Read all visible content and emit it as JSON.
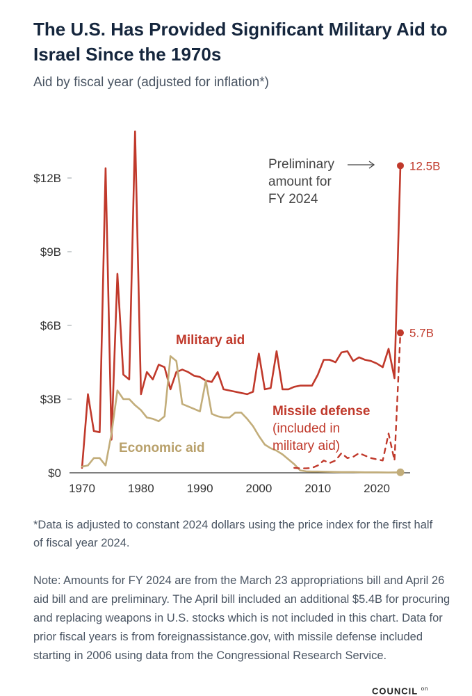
{
  "header": {
    "title": "The U.S. Has Provided Significant Military Aid to Israel Since the 1970s",
    "subtitle": "Aid by fiscal year (adjusted for inflation*)"
  },
  "colors": {
    "military": "#c0392b",
    "economic": "#c2ad7a",
    "axis": "#333333",
    "tick": "#9aa0a6"
  },
  "chart_data": {
    "type": "line",
    "title": "The U.S. Has Provided Significant Military Aid to Israel Since the 1970s",
    "subtitle": "Aid by fiscal year (adjusted for inflation*)",
    "xlabel": "",
    "ylabel": "",
    "xlim": [
      1968,
      2026
    ],
    "ylim": [
      0,
      15
    ],
    "grid": false,
    "y_ticks": [
      {
        "value": 0,
        "label": "$0"
      },
      {
        "value": 3,
        "label": "$3B"
      },
      {
        "value": 6,
        "label": "$6B"
      },
      {
        "value": 9,
        "label": "$9B"
      },
      {
        "value": 12,
        "label": "$12B"
      }
    ],
    "x_ticks": [
      {
        "value": 1970,
        "label": "1970"
      },
      {
        "value": 1980,
        "label": "1980"
      },
      {
        "value": 1990,
        "label": "1990"
      },
      {
        "value": 2000,
        "label": "2000"
      },
      {
        "value": 2010,
        "label": "2010"
      },
      {
        "value": 2020,
        "label": "2020"
      }
    ],
    "series": [
      {
        "name": "Military aid",
        "style": "solid",
        "points": [
          [
            1970,
            0.2
          ],
          [
            1971,
            3.2
          ],
          [
            1972,
            1.7
          ],
          [
            1973,
            1.65
          ],
          [
            1974,
            12.4
          ],
          [
            1975,
            1.35
          ],
          [
            1976,
            8.1
          ],
          [
            1977,
            4.0
          ],
          [
            1978,
            3.8
          ],
          [
            1979,
            13.9
          ],
          [
            1980,
            3.2
          ],
          [
            1981,
            4.1
          ],
          [
            1982,
            3.8
          ],
          [
            1983,
            4.4
          ],
          [
            1984,
            4.3
          ],
          [
            1985,
            3.4
          ],
          [
            1986,
            4.1
          ],
          [
            1987,
            4.2
          ],
          [
            1988,
            4.1
          ],
          [
            1989,
            3.95
          ],
          [
            1990,
            3.9
          ],
          [
            1991,
            3.75
          ],
          [
            1992,
            3.7
          ],
          [
            1993,
            4.1
          ],
          [
            1994,
            3.4
          ],
          [
            1995,
            3.35
          ],
          [
            1996,
            3.3
          ],
          [
            1997,
            3.25
          ],
          [
            1998,
            3.2
          ],
          [
            1999,
            3.3
          ],
          [
            2000,
            4.85
          ],
          [
            2001,
            3.4
          ],
          [
            2002,
            3.45
          ],
          [
            2003,
            4.95
          ],
          [
            2004,
            3.4
          ],
          [
            2005,
            3.4
          ],
          [
            2006,
            3.5
          ],
          [
            2007,
            3.55
          ],
          [
            2008,
            3.55
          ],
          [
            2009,
            3.55
          ],
          [
            2010,
            4.0
          ],
          [
            2011,
            4.6
          ],
          [
            2012,
            4.6
          ],
          [
            2013,
            4.5
          ],
          [
            2014,
            4.9
          ],
          [
            2015,
            4.95
          ],
          [
            2016,
            4.55
          ],
          [
            2017,
            4.7
          ],
          [
            2018,
            4.6
          ],
          [
            2019,
            4.55
          ],
          [
            2020,
            4.45
          ],
          [
            2021,
            4.3
          ],
          [
            2022,
            5.05
          ],
          [
            2023,
            3.85
          ],
          [
            2024,
            12.5
          ]
        ]
      },
      {
        "name": "Economic aid",
        "style": "solid",
        "points": [
          [
            1970,
            0.25
          ],
          [
            1971,
            0.3
          ],
          [
            1972,
            0.6
          ],
          [
            1973,
            0.6
          ],
          [
            1974,
            0.3
          ],
          [
            1975,
            1.6
          ],
          [
            1976,
            3.35
          ],
          [
            1977,
            3.0
          ],
          [
            1978,
            3.0
          ],
          [
            1979,
            2.75
          ],
          [
            1980,
            2.55
          ],
          [
            1981,
            2.25
          ],
          [
            1982,
            2.2
          ],
          [
            1983,
            2.1
          ],
          [
            1984,
            2.3
          ],
          [
            1985,
            4.75
          ],
          [
            1986,
            4.55
          ],
          [
            1987,
            2.8
          ],
          [
            1988,
            2.7
          ],
          [
            1989,
            2.6
          ],
          [
            1990,
            2.5
          ],
          [
            1991,
            3.75
          ],
          [
            1992,
            2.4
          ],
          [
            1993,
            2.3
          ],
          [
            1994,
            2.25
          ],
          [
            1995,
            2.25
          ],
          [
            1996,
            2.45
          ],
          [
            1997,
            2.45
          ],
          [
            1998,
            2.2
          ],
          [
            1999,
            1.9
          ],
          [
            2000,
            1.5
          ],
          [
            2001,
            1.15
          ],
          [
            2002,
            1.0
          ],
          [
            2003,
            0.9
          ],
          [
            2004,
            0.75
          ],
          [
            2005,
            0.55
          ],
          [
            2006,
            0.35
          ],
          [
            2007,
            0.1
          ],
          [
            2008,
            0.06
          ],
          [
            2009,
            0.05
          ],
          [
            2010,
            0.05
          ],
          [
            2012,
            0.04
          ],
          [
            2014,
            0.03
          ],
          [
            2016,
            0.03
          ],
          [
            2018,
            0.02
          ],
          [
            2020,
            0.02
          ],
          [
            2022,
            0.01
          ],
          [
            2024,
            0.02
          ]
        ]
      },
      {
        "name": "Missile defense (included in military aid)",
        "style": "dashed",
        "points": [
          [
            2006,
            0.2
          ],
          [
            2007,
            0.18
          ],
          [
            2008,
            0.18
          ],
          [
            2009,
            0.2
          ],
          [
            2010,
            0.3
          ],
          [
            2011,
            0.5
          ],
          [
            2012,
            0.4
          ],
          [
            2013,
            0.5
          ],
          [
            2014,
            0.8
          ],
          [
            2015,
            0.6
          ],
          [
            2016,
            0.65
          ],
          [
            2017,
            0.8
          ],
          [
            2018,
            0.7
          ],
          [
            2019,
            0.6
          ],
          [
            2020,
            0.55
          ],
          [
            2021,
            0.5
          ],
          [
            2022,
            1.6
          ],
          [
            2023,
            0.5
          ],
          [
            2024,
            5.7
          ]
        ]
      }
    ],
    "annotations": {
      "military_label": "Military aid",
      "economic_label": "Economic aid",
      "missile_label_1": "Missile defense",
      "missile_label_2": "(included in",
      "missile_label_3": "military aid)",
      "prelim_1": "Preliminary",
      "prelim_2": "amount for",
      "prelim_3": "FY 2024",
      "end_military": "12.5B",
      "end_missile": "5.7B"
    }
  },
  "footnote": "*Data is adjusted to constant 2024 dollars using the price index for the first half of fiscal year 2024.",
  "note": "Note: Amounts for FY 2024 are from the March 23 appropriations bill and April 26 aid bill and are preliminary. The April bill included an additional $5.4B for procuring and replacing weapons in U.S. stocks which is not included in this chart. Data for prior fiscal years is from foreignassistance.gov, with missile defense included starting in 2006 using data from the Congressional Research Service.",
  "brand": {
    "name": "COUNCIL",
    "suffix": "on"
  }
}
